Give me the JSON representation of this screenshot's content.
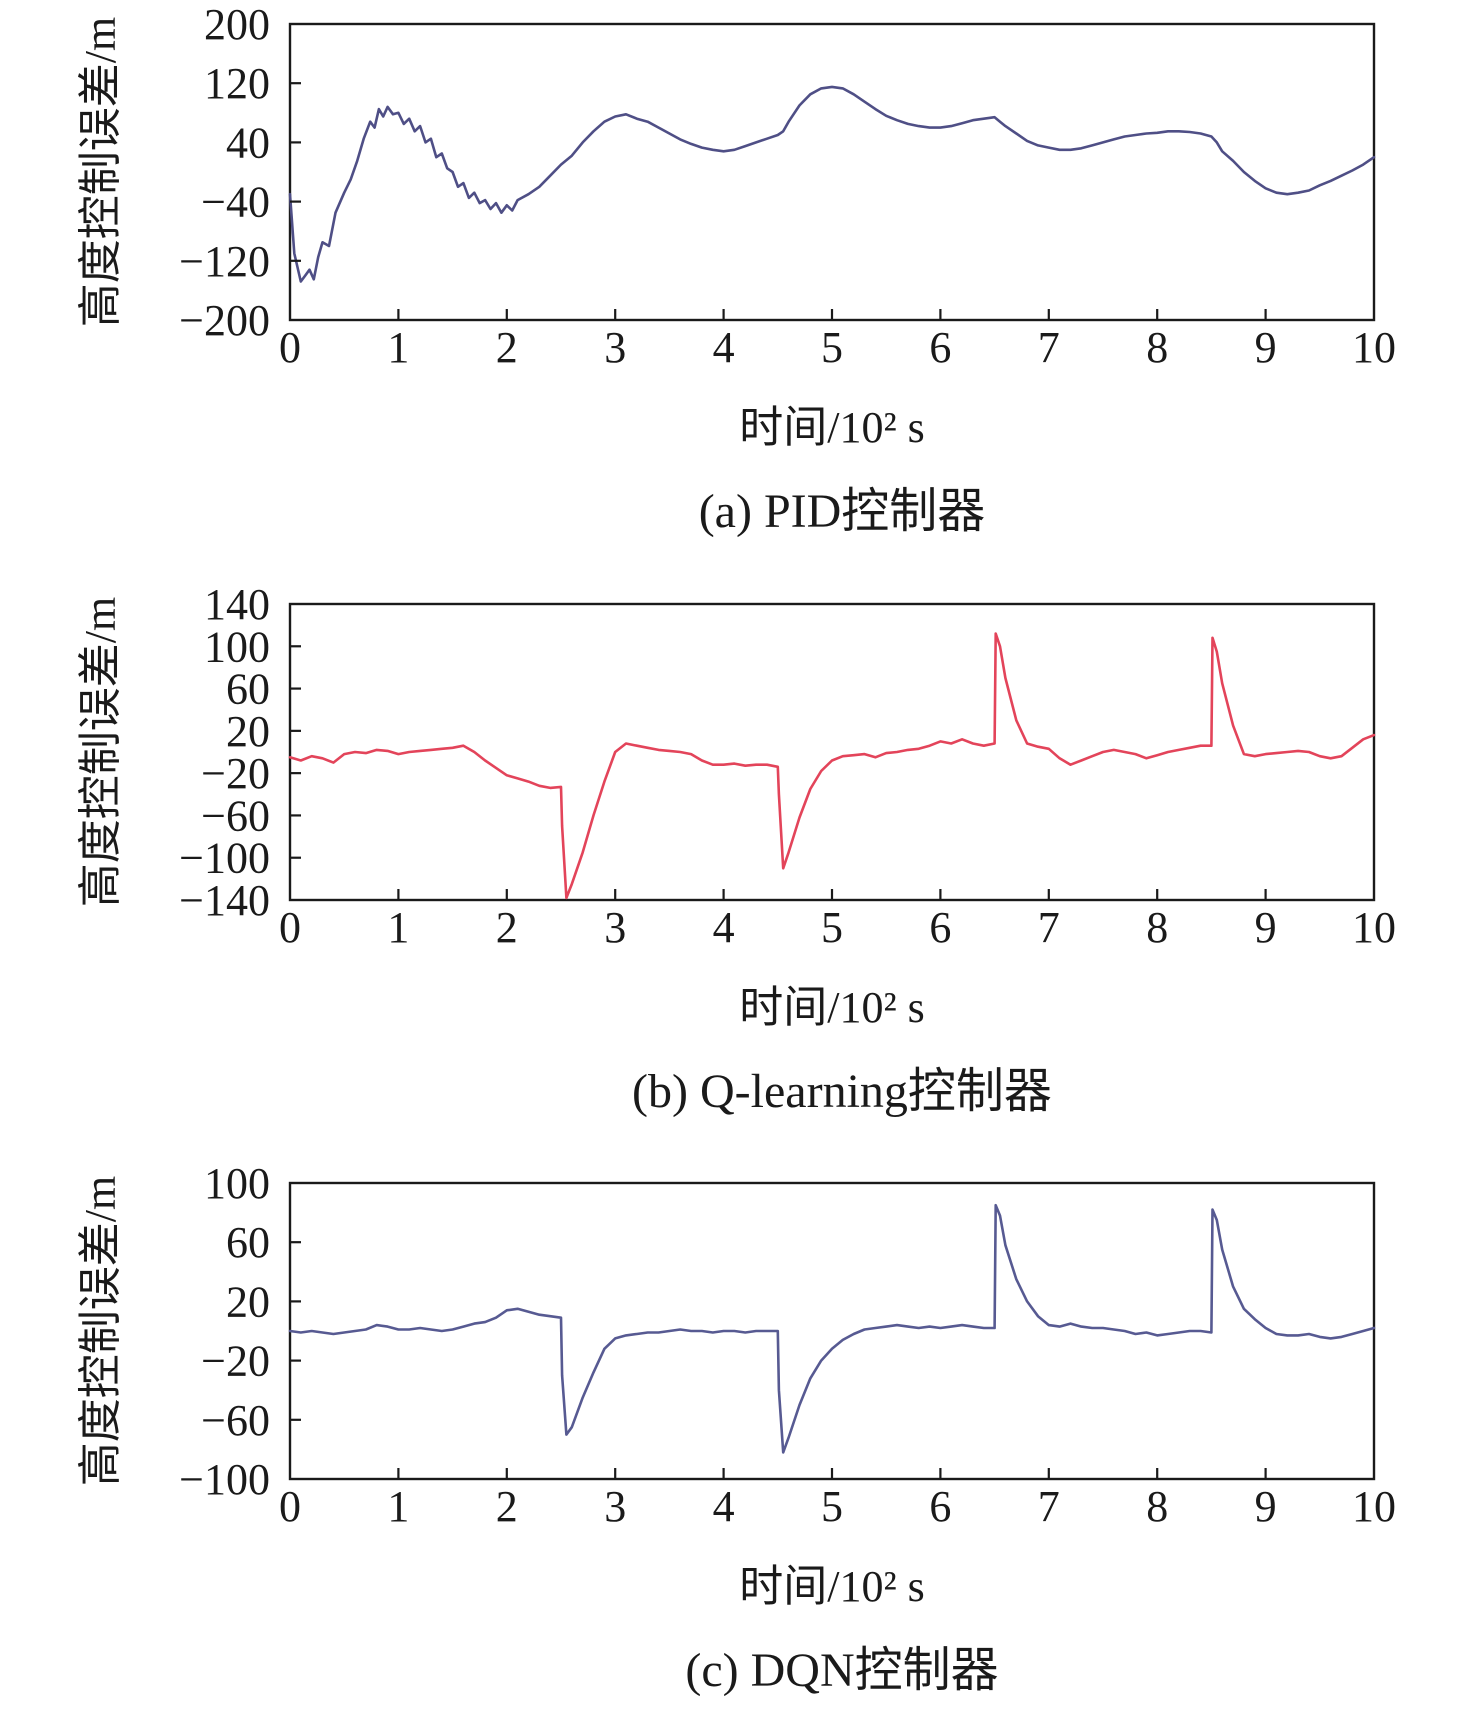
{
  "chart_data": [
    {
      "type": "line",
      "caption": "(a) PID控制器",
      "xlabel": "时间/10² s",
      "ylabel": "高度控制误差/m",
      "xlim": [
        0,
        10
      ],
      "ylim": [
        -200,
        200
      ],
      "xticks": [
        "0",
        "1",
        "2",
        "3",
        "4",
        "5",
        "6",
        "7",
        "8",
        "9",
        "10"
      ],
      "yticks": [
        "200",
        "120",
        "40",
        "−40",
        "−120",
        "−200"
      ],
      "ytick_values": [
        200,
        120,
        40,
        -40,
        -120,
        -200
      ],
      "grid": false,
      "series": [
        {
          "color": "#4f4f86",
          "x": [
            0,
            0.04,
            0.1,
            0.14,
            0.18,
            0.22,
            0.26,
            0.3,
            0.36,
            0.42,
            0.5,
            0.56,
            0.62,
            0.68,
            0.74,
            0.78,
            0.82,
            0.86,
            0.9,
            0.95,
            1.0,
            1.05,
            1.1,
            1.15,
            1.2,
            1.25,
            1.3,
            1.35,
            1.4,
            1.45,
            1.5,
            1.55,
            1.6,
            1.65,
            1.7,
            1.75,
            1.8,
            1.85,
            1.9,
            1.95,
            2.0,
            2.05,
            2.1,
            2.2,
            2.3,
            2.4,
            2.5,
            2.6,
            2.7,
            2.8,
            2.9,
            3.0,
            3.1,
            3.2,
            3.3,
            3.4,
            3.5,
            3.6,
            3.7,
            3.8,
            3.9,
            4.0,
            4.1,
            4.2,
            4.3,
            4.4,
            4.5,
            4.55,
            4.6,
            4.7,
            4.8,
            4.9,
            5.0,
            5.1,
            5.2,
            5.3,
            5.4,
            5.5,
            5.6,
            5.7,
            5.8,
            5.9,
            6.0,
            6.1,
            6.2,
            6.3,
            6.4,
            6.5,
            6.55,
            6.6,
            6.7,
            6.8,
            6.9,
            7.0,
            7.1,
            7.2,
            7.3,
            7.4,
            7.5,
            7.6,
            7.7,
            7.8,
            7.9,
            8.0,
            8.1,
            8.2,
            8.3,
            8.4,
            8.5,
            8.55,
            8.6,
            8.7,
            8.8,
            8.9,
            9.0,
            9.1,
            9.2,
            9.3,
            9.4,
            9.5,
            9.6,
            9.7,
            9.8,
            9.9,
            10.0
          ],
          "y": [
            -30,
            -110,
            -148,
            -140,
            -132,
            -145,
            -115,
            -95,
            -100,
            -55,
            -28,
            -10,
            15,
            45,
            68,
            60,
            85,
            75,
            88,
            78,
            80,
            65,
            72,
            55,
            62,
            40,
            45,
            20,
            25,
            5,
            0,
            -20,
            -15,
            -35,
            -28,
            -42,
            -38,
            -50,
            -42,
            -55,
            -45,
            -52,
            -38,
            -30,
            -20,
            -5,
            10,
            22,
            40,
            55,
            68,
            75,
            78,
            72,
            68,
            60,
            52,
            44,
            38,
            33,
            30,
            28,
            30,
            35,
            40,
            45,
            50,
            55,
            68,
            90,
            105,
            113,
            115,
            113,
            105,
            95,
            85,
            76,
            70,
            65,
            62,
            60,
            60,
            62,
            66,
            70,
            72,
            74,
            68,
            62,
            52,
            42,
            36,
            33,
            30,
            30,
            32,
            36,
            40,
            44,
            48,
            50,
            52,
            53,
            55,
            55,
            54,
            52,
            48,
            40,
            28,
            15,
            0,
            -12,
            -22,
            -28,
            -30,
            -28,
            -25,
            -18,
            -12,
            -5,
            2,
            10,
            20
          ]
        }
      ]
    },
    {
      "type": "line",
      "caption": "(b) Q-learning控制器",
      "xlabel": "时间/10² s",
      "ylabel": "高度控制误差/m",
      "xlim": [
        0,
        10
      ],
      "ylim": [
        -140,
        140
      ],
      "xticks": [
        "0",
        "1",
        "2",
        "3",
        "4",
        "5",
        "6",
        "7",
        "8",
        "9",
        "10"
      ],
      "yticks": [
        "140",
        "100",
        "60",
        "20",
        "−20",
        "−60",
        "−100",
        "−140"
      ],
      "ytick_values": [
        140,
        100,
        60,
        20,
        -20,
        -60,
        -100,
        -140
      ],
      "grid": false,
      "series": [
        {
          "color": "#e3445a",
          "x": [
            0,
            0.1,
            0.2,
            0.3,
            0.4,
            0.5,
            0.6,
            0.7,
            0.8,
            0.9,
            1.0,
            1.1,
            1.2,
            1.3,
            1.4,
            1.5,
            1.6,
            1.7,
            1.8,
            1.9,
            2.0,
            2.1,
            2.2,
            2.3,
            2.4,
            2.5,
            2.51,
            2.55,
            2.6,
            2.7,
            2.8,
            2.9,
            3.0,
            3.1,
            3.2,
            3.3,
            3.4,
            3.5,
            3.6,
            3.7,
            3.8,
            3.9,
            4.0,
            4.1,
            4.2,
            4.3,
            4.4,
            4.5,
            4.51,
            4.55,
            4.6,
            4.7,
            4.8,
            4.9,
            5.0,
            5.1,
            5.2,
            5.3,
            5.4,
            5.5,
            5.6,
            5.7,
            5.8,
            5.9,
            6.0,
            6.1,
            6.2,
            6.3,
            6.4,
            6.5,
            6.51,
            6.55,
            6.6,
            6.7,
            6.8,
            6.9,
            7.0,
            7.1,
            7.2,
            7.3,
            7.4,
            7.5,
            7.6,
            7.7,
            7.8,
            7.9,
            8.0,
            8.1,
            8.2,
            8.3,
            8.4,
            8.5,
            8.51,
            8.55,
            8.6,
            8.7,
            8.8,
            8.9,
            9.0,
            9.1,
            9.2,
            9.3,
            9.4,
            9.5,
            9.6,
            9.7,
            9.8,
            9.9,
            10.0
          ],
          "y": [
            -5,
            -8,
            -4,
            -6,
            -10,
            -2,
            0,
            -1,
            2,
            1,
            -2,
            0,
            1,
            2,
            3,
            4,
            6,
            0,
            -8,
            -15,
            -22,
            -25,
            -28,
            -32,
            -34,
            -33,
            -70,
            -138,
            -125,
            -95,
            -60,
            -28,
            0,
            8,
            6,
            4,
            2,
            1,
            0,
            -2,
            -8,
            -12,
            -12,
            -11,
            -13,
            -12,
            -12,
            -14,
            -40,
            -110,
            -95,
            -62,
            -35,
            -18,
            -8,
            -4,
            -3,
            -2,
            -5,
            -1,
            0,
            2,
            3,
            6,
            10,
            8,
            12,
            8,
            6,
            8,
            112,
            100,
            70,
            30,
            8,
            5,
            3,
            -6,
            -12,
            -8,
            -4,
            0,
            2,
            0,
            -2,
            -6,
            -3,
            0,
            2,
            4,
            6,
            6,
            108,
            95,
            65,
            25,
            -2,
            -4,
            -2,
            -1,
            0,
            1,
            0,
            -4,
            -6,
            -4,
            4,
            12,
            16
          ]
        }
      ]
    },
    {
      "type": "line",
      "caption": "(c) DQN控制器",
      "xlabel": "时间/10² s",
      "ylabel": "高度控制误差/m",
      "xlim": [
        0,
        10
      ],
      "ylim": [
        -100,
        100
      ],
      "xticks": [
        "0",
        "1",
        "2",
        "3",
        "4",
        "5",
        "6",
        "7",
        "8",
        "9",
        "10"
      ],
      "yticks": [
        "100",
        "60",
        "20",
        "−20",
        "−60",
        "−100"
      ],
      "ytick_values": [
        100,
        60,
        20,
        -20,
        -60,
        -100
      ],
      "grid": false,
      "series": [
        {
          "color": "#575a92",
          "x": [
            0,
            0.1,
            0.2,
            0.3,
            0.4,
            0.5,
            0.6,
            0.7,
            0.8,
            0.9,
            1.0,
            1.1,
            1.2,
            1.3,
            1.4,
            1.5,
            1.6,
            1.7,
            1.8,
            1.9,
            2.0,
            2.1,
            2.2,
            2.3,
            2.4,
            2.5,
            2.51,
            2.55,
            2.6,
            2.7,
            2.8,
            2.9,
            3.0,
            3.1,
            3.2,
            3.3,
            3.4,
            3.5,
            3.6,
            3.7,
            3.8,
            3.9,
            4.0,
            4.1,
            4.2,
            4.3,
            4.4,
            4.5,
            4.51,
            4.55,
            4.6,
            4.7,
            4.8,
            4.9,
            5.0,
            5.1,
            5.2,
            5.3,
            5.4,
            5.5,
            5.6,
            5.7,
            5.8,
            5.9,
            6.0,
            6.1,
            6.2,
            6.3,
            6.4,
            6.5,
            6.51,
            6.55,
            6.6,
            6.7,
            6.8,
            6.9,
            7.0,
            7.1,
            7.2,
            7.3,
            7.4,
            7.5,
            7.6,
            7.7,
            7.8,
            7.9,
            8.0,
            8.1,
            8.2,
            8.3,
            8.4,
            8.5,
            8.51,
            8.55,
            8.6,
            8.7,
            8.8,
            8.9,
            9.0,
            9.1,
            9.2,
            9.3,
            9.4,
            9.5,
            9.6,
            9.7,
            9.8,
            9.9,
            10.0
          ],
          "y": [
            0,
            -1,
            0,
            -1,
            -2,
            -1,
            0,
            1,
            4,
            3,
            1,
            1,
            2,
            1,
            0,
            1,
            3,
            5,
            6,
            9,
            14,
            15,
            13,
            11,
            10,
            9,
            -30,
            -70,
            -65,
            -45,
            -28,
            -12,
            -5,
            -3,
            -2,
            -1,
            -1,
            0,
            1,
            0,
            0,
            -1,
            0,
            0,
            -1,
            0,
            0,
            0,
            -40,
            -82,
            -72,
            -50,
            -32,
            -20,
            -12,
            -6,
            -2,
            1,
            2,
            3,
            4,
            3,
            2,
            3,
            2,
            3,
            4,
            3,
            2,
            2,
            85,
            78,
            58,
            35,
            20,
            10,
            4,
            3,
            5,
            3,
            2,
            2,
            1,
            0,
            -2,
            -1,
            -3,
            -2,
            -1,
            0,
            0,
            -1,
            82,
            75,
            55,
            30,
            15,
            8,
            2,
            -2,
            -3,
            -3,
            -2,
            -4,
            -5,
            -4,
            -2,
            0,
            2
          ]
        }
      ]
    }
  ]
}
